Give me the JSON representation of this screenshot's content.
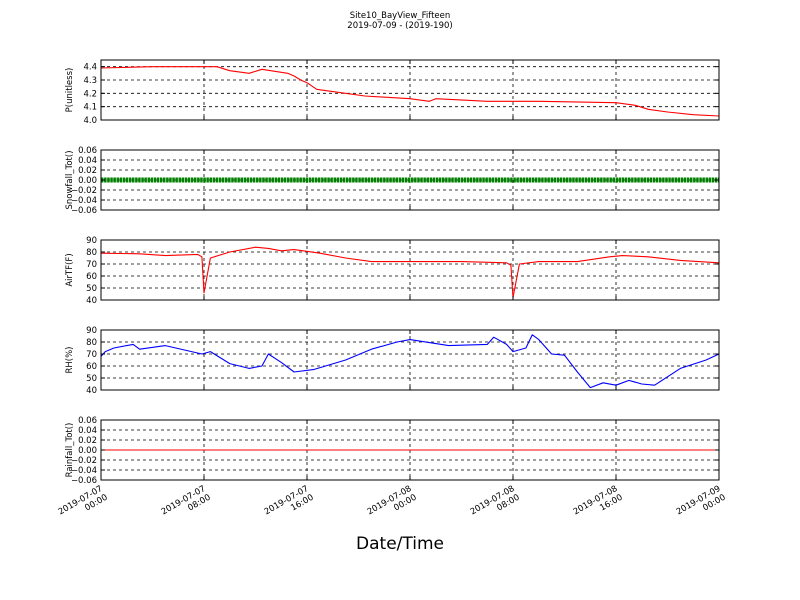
{
  "title": "Site10_BayView_Fifteen",
  "subtitle": "2019-07-09 - (2019-190)",
  "xlabel": "Date/Time",
  "x_ticks": [
    [
      "2019-07-07",
      "00:00"
    ],
    [
      "2019-07-07",
      "08:00"
    ],
    [
      "2019-07-07",
      "16:00"
    ],
    [
      "2019-07-08",
      "00:00"
    ],
    [
      "2019-07-08",
      "08:00"
    ],
    [
      "2019-07-08",
      "16:00"
    ],
    [
      "2019-07-09",
      "00:00"
    ]
  ],
  "chart_data": [
    {
      "type": "line",
      "ylabel": "P(unitless)",
      "ylim": [
        4.0,
        4.45
      ],
      "yticks": [
        "4.0",
        "4.1",
        "4.2",
        "4.3",
        "4.4"
      ],
      "grid": true,
      "color": "#ff0000",
      "xlim": [
        "2019-07-07 00:00",
        "2019-07-09 00:00"
      ],
      "x": [
        "2019-07-07 00:00",
        "2019-07-07 04:00",
        "2019-07-07 09:00",
        "2019-07-07 10:00",
        "2019-07-07 11:30",
        "2019-07-07 12:30",
        "2019-07-07 14:30",
        "2019-07-07 15:00",
        "2019-07-07 15:30",
        "2019-07-07 16:00",
        "2019-07-07 16:45",
        "2019-07-07 17:30",
        "2019-07-07 19:00",
        "2019-07-07 20:30",
        "2019-07-08 00:00",
        "2019-07-08 01:30",
        "2019-07-08 02:00",
        "2019-07-08 06:00",
        "2019-07-08 10:00",
        "2019-07-08 16:00",
        "2019-07-08 17:30",
        "2019-07-08 18:30",
        "2019-07-08 20:00",
        "2019-07-08 22:00",
        "2019-07-09 00:00"
      ],
      "values": [
        4.39,
        4.4,
        4.4,
        4.37,
        4.35,
        4.38,
        4.35,
        4.33,
        4.3,
        4.28,
        4.23,
        4.22,
        4.2,
        4.18,
        4.16,
        4.14,
        4.16,
        4.14,
        4.14,
        4.13,
        4.11,
        4.08,
        4.06,
        4.04,
        4.03
      ]
    },
    {
      "type": "scatter",
      "ylabel": "Snowfall_Tot()",
      "ylim": [
        -0.06,
        0.06
      ],
      "yticks": [
        "−0.06",
        "−0.04",
        "−0.02",
        "0.00",
        "0.02",
        "0.04",
        "0.06"
      ],
      "grid": true,
      "color": "#008000",
      "xlim": [
        "2019-07-07 00:00",
        "2019-07-09 00:00"
      ],
      "x": [
        "2019-07-07 00:00",
        "2019-07-09 00:00"
      ],
      "values": [
        0.0,
        0.0
      ]
    },
    {
      "type": "line",
      "ylabel": "AirTF(F)",
      "ylim": [
        40,
        90
      ],
      "yticks": [
        "40",
        "50",
        "60",
        "70",
        "80",
        "90"
      ],
      "grid": true,
      "color": "#ff0000",
      "xlim": [
        "2019-07-07 00:00",
        "2019-07-09 00:00"
      ],
      "x": [
        "2019-07-07 00:00",
        "2019-07-07 03:00",
        "2019-07-07 05:00",
        "2019-07-07 07:30",
        "2019-07-07 07:50",
        "2019-07-07 08:00",
        "2019-07-07 08:30",
        "2019-07-07 10:00",
        "2019-07-07 12:00",
        "2019-07-07 13:00",
        "2019-07-07 14:00",
        "2019-07-07 15:00",
        "2019-07-07 17:00",
        "2019-07-07 19:00",
        "2019-07-07 21:00",
        "2019-07-08 00:00",
        "2019-07-08 04:00",
        "2019-07-08 07:30",
        "2019-07-08 07:50",
        "2019-07-08 08:00",
        "2019-07-08 08:30",
        "2019-07-08 10:00",
        "2019-07-08 13:00",
        "2019-07-08 15:30",
        "2019-07-08 16:30",
        "2019-07-08 18:30",
        "2019-07-08 21:00",
        "2019-07-09 00:00"
      ],
      "values": [
        79,
        78.5,
        77,
        78,
        76,
        46,
        75,
        80,
        84,
        83,
        81,
        82,
        79,
        75,
        72,
        72,
        72,
        71,
        69,
        42,
        70,
        72,
        72,
        76,
        77,
        76,
        73,
        71
      ]
    },
    {
      "type": "line",
      "ylabel": "RH(%)",
      "ylim": [
        40,
        90
      ],
      "yticks": [
        "40",
        "50",
        "60",
        "70",
        "80",
        "90"
      ],
      "grid": true,
      "color": "#0000ff",
      "xlim": [
        "2019-07-07 00:00",
        "2019-07-09 00:00"
      ],
      "x": [
        "2019-07-07 00:00",
        "2019-07-07 00:20",
        "2019-07-07 01:00",
        "2019-07-07 02:30",
        "2019-07-07 03:00",
        "2019-07-07 05:00",
        "2019-07-07 07:50",
        "2019-07-07 08:30",
        "2019-07-07 10:00",
        "2019-07-07 11:30",
        "2019-07-07 12:30",
        "2019-07-07 13:00",
        "2019-07-07 14:00",
        "2019-07-07 15:00",
        "2019-07-07 16:30",
        "2019-07-07 19:00",
        "2019-07-07 21:00",
        "2019-07-07 23:00",
        "2019-07-08 00:00",
        "2019-07-08 03:00",
        "2019-07-08 06:00",
        "2019-07-08 06:30",
        "2019-07-08 07:30",
        "2019-07-08 08:00",
        "2019-07-08 09:00",
        "2019-07-08 09:30",
        "2019-07-08 10:00",
        "2019-07-08 11:00",
        "2019-07-08 12:00",
        "2019-07-08 13:00",
        "2019-07-08 14:00",
        "2019-07-08 15:00",
        "2019-07-08 16:00",
        "2019-07-08 17:00",
        "2019-07-08 18:00",
        "2019-07-08 19:00",
        "2019-07-08 21:00",
        "2019-07-08 23:00",
        "2019-07-09 00:00"
      ],
      "values": [
        68,
        72,
        75,
        78,
        74,
        77,
        70,
        72,
        62,
        58,
        60,
        70,
        63,
        55,
        57,
        65,
        74,
        80,
        82,
        77,
        78,
        84,
        78,
        72,
        75,
        86,
        82,
        70,
        69,
        55,
        42,
        46,
        44,
        48,
        45,
        44,
        58,
        65,
        70
      ]
    },
    {
      "type": "line",
      "ylabel": "Rainfall_Tot()",
      "ylim": [
        -0.06,
        0.06
      ],
      "yticks": [
        "−0.06",
        "−0.04",
        "−0.02",
        "0.00",
        "0.02",
        "0.04",
        "0.06"
      ],
      "grid": true,
      "color": "#ff0000",
      "xlim": [
        "2019-07-07 00:00",
        "2019-07-09 00:00"
      ],
      "x": [
        "2019-07-07 00:00",
        "2019-07-09 00:00"
      ],
      "values": [
        0.0,
        0.0
      ]
    }
  ]
}
